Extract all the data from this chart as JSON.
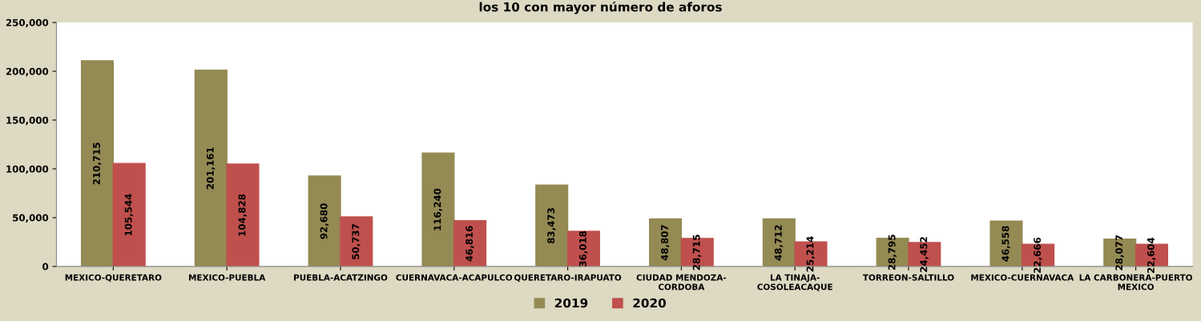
{
  "chart_data": {
    "type": "bar",
    "title": "los 10 con mayor número de aforos",
    "categories": [
      "MEXICO-QUERETARO",
      "MEXICO-PUEBLA",
      "PUEBLA-ACATZINGO",
      "CUERNAVACA-ACAPULCO",
      "QUERETARO-IRAPUATO",
      "CIUDAD MENDOZA-\nCORDOBA",
      "LA TINAJA-\nCOSOLEACAQUE",
      "TORREON-SALTILLO",
      "MEXICO-CUERNAVACA",
      "LA CARBONERA-PUERTO\nMEXICO"
    ],
    "series": [
      {
        "name": "2019",
        "color": "#948a54",
        "values": [
          210715,
          201161,
          92680,
          116240,
          83473,
          48807,
          48712,
          28795,
          46558,
          28077
        ],
        "value_labels": [
          "210,715",
          "201,161",
          "92,680",
          "116,240",
          "83,473",
          "48,807",
          "48,712",
          "28,795",
          "46,558",
          "28,077"
        ]
      },
      {
        "name": "2020",
        "color": "#c0504d",
        "values": [
          105544,
          104828,
          50737,
          46816,
          36018,
          28715,
          25214,
          24452,
          22666,
          22604
        ],
        "value_labels": [
          "105,544",
          "104,828",
          "50,737",
          "46,816",
          "36,018",
          "28,715",
          "25,214",
          "24,452",
          "22,666",
          "22,604"
        ]
      }
    ],
    "ylim": [
      0,
      250000
    ],
    "yticks": [
      {
        "value": 0,
        "label": "0"
      },
      {
        "value": 50000,
        "label": "50,000"
      },
      {
        "value": 100000,
        "label": "100,000"
      },
      {
        "value": 150000,
        "label": "150,000"
      },
      {
        "value": 200000,
        "label": "200,000"
      },
      {
        "value": 250000,
        "label": "250,000"
      }
    ],
    "grid": false,
    "legend": "bottom"
  }
}
